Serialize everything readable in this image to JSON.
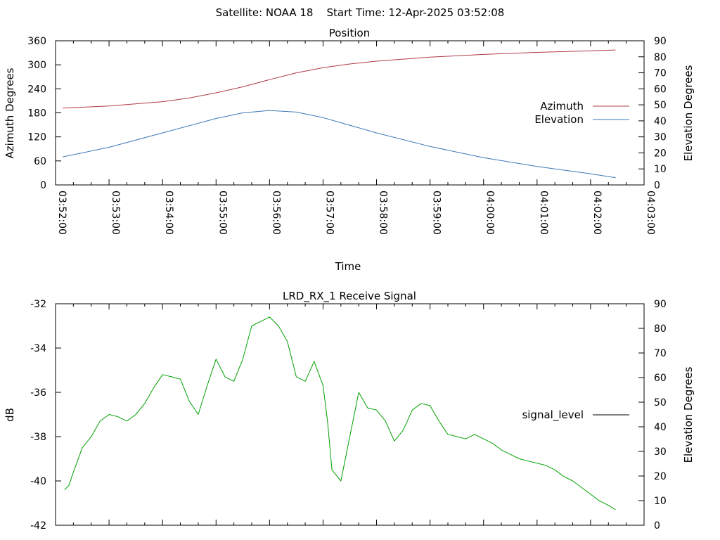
{
  "page": {
    "title": "Satellite: NOAA 18    Start Time: 12-Apr-2025 03:52:08"
  },
  "chart_data": [
    {
      "type": "line",
      "title": "Position",
      "xlabel": "Time",
      "ylabel": "Azimuth Degrees",
      "y2label": "Elevation Degrees",
      "xlim": [
        "03:52:00",
        "04:03:00"
      ],
      "xticks": [
        "03:52:00",
        "03:53:00",
        "03:54:00",
        "03:55:00",
        "03:56:00",
        "03:57:00",
        "03:58:00",
        "03:59:00",
        "04:00:00",
        "04:01:00",
        "04:02:00",
        "04:03:00"
      ],
      "ylim": [
        0,
        360
      ],
      "yticks": [
        0,
        60,
        120,
        180,
        240,
        300,
        360
      ],
      "y2lim": [
        0,
        90
      ],
      "y2ticks": [
        0,
        10,
        20,
        30,
        40,
        50,
        60,
        70,
        80,
        90
      ],
      "legend_position": "right",
      "series": [
        {
          "name": "Azimuth",
          "axis": "left",
          "color": "#b03a48",
          "x": [
            "03:52:08",
            "03:53:00",
            "03:54:00",
            "03:54:30",
            "03:55:00",
            "03:55:30",
            "03:56:00",
            "03:56:30",
            "03:57:00",
            "03:57:30",
            "03:58:00",
            "03:59:00",
            "04:00:00",
            "04:01:00",
            "04:02:00",
            "04:02:28"
          ],
          "y": [
            192,
            197,
            208,
            217,
            230,
            245,
            263,
            280,
            293,
            302,
            309,
            319,
            326,
            331,
            335,
            337
          ]
        },
        {
          "name": "Elevation",
          "axis": "right",
          "color": "#3a78b8",
          "x": [
            "03:52:08",
            "03:53:00",
            "03:54:00",
            "03:55:00",
            "03:55:30",
            "03:56:00",
            "03:56:30",
            "03:57:00",
            "03:58:00",
            "03:59:00",
            "04:00:00",
            "04:01:00",
            "04:02:00",
            "04:02:28"
          ],
          "y": [
            17.5,
            23.5,
            32.5,
            41.5,
            45,
            46.5,
            45.5,
            42,
            32.5,
            24,
            17,
            11.5,
            7,
            4.5
          ]
        }
      ]
    },
    {
      "type": "line",
      "title": "LRD_RX_1 Receive Signal",
      "xlabel": "",
      "ylabel": "dB",
      "y2label": "Elevation Degrees",
      "xlim": [
        "03:52:00",
        "04:03:00"
      ],
      "ylim": [
        -42,
        -32
      ],
      "yticks": [
        -42,
        -40,
        -38,
        -36,
        -34,
        -32
      ],
      "y2lim": [
        0,
        90
      ],
      "y2ticks": [
        0,
        10,
        20,
        30,
        40,
        50,
        60,
        70,
        80,
        90
      ],
      "legend_position": "right",
      "series": [
        {
          "name": "signal_level",
          "axis": "left",
          "color": "#00a000",
          "x": [
            "03:52:10",
            "03:52:15",
            "03:52:20",
            "03:52:30",
            "03:52:40",
            "03:52:50",
            "03:53:00",
            "03:53:10",
            "03:53:20",
            "03:53:30",
            "03:53:40",
            "03:53:50",
            "03:54:00",
            "03:54:10",
            "03:54:20",
            "03:54:30",
            "03:54:40",
            "03:54:50",
            "03:55:00",
            "03:55:10",
            "03:55:20",
            "03:55:30",
            "03:55:40",
            "03:55:50",
            "03:56:00",
            "03:56:10",
            "03:56:20",
            "03:56:30",
            "03:56:40",
            "03:56:50",
            "03:57:00",
            "03:57:05",
            "03:57:10",
            "03:57:20",
            "03:57:30",
            "03:57:40",
            "03:57:50",
            "03:58:00",
            "03:58:10",
            "03:58:20",
            "03:58:30",
            "03:58:40",
            "03:58:50",
            "03:59:00",
            "03:59:10",
            "03:59:20",
            "03:59:30",
            "03:59:40",
            "03:59:50",
            "04:00:00",
            "04:00:10",
            "04:00:20",
            "04:00:30",
            "04:00:40",
            "04:00:50",
            "04:01:00",
            "04:01:10",
            "04:01:20",
            "04:01:30",
            "04:01:40",
            "04:01:50",
            "04:02:00",
            "04:02:10",
            "04:02:20",
            "04:02:28"
          ],
          "y": [
            -40.4,
            -40.2,
            -39.6,
            -38.5,
            -38.0,
            -37.3,
            -37.0,
            -37.1,
            -37.3,
            -37.0,
            -36.5,
            -35.8,
            -35.2,
            -35.3,
            -35.4,
            -36.4,
            -37.0,
            -35.7,
            -34.5,
            -35.3,
            -35.5,
            -34.5,
            -33.0,
            -32.8,
            -32.6,
            -33.0,
            -33.7,
            -35.3,
            -35.5,
            -34.6,
            -35.7,
            -37.3,
            -39.5,
            -40.0,
            -38.0,
            -36.0,
            -36.7,
            -36.8,
            -37.3,
            -38.2,
            -37.7,
            -36.8,
            -36.5,
            -36.6,
            -37.3,
            -37.9,
            -38.0,
            -38.1,
            -37.9,
            -38.1,
            -38.3,
            -38.6,
            -38.8,
            -39.0,
            -39.1,
            -39.2,
            -39.3,
            -39.5,
            -39.8,
            -40.0,
            -40.3,
            -40.6,
            -40.9,
            -41.1,
            -41.3
          ]
        }
      ]
    }
  ]
}
